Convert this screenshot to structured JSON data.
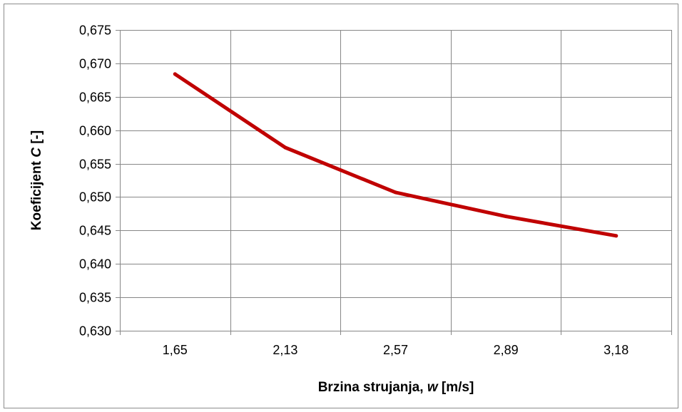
{
  "chart_data": {
    "type": "line",
    "title": "",
    "categories": [
      "1,65",
      "2,13",
      "2,57",
      "2,89",
      "3,18"
    ],
    "series": [
      {
        "values": [
          0.6684,
          0.6574,
          0.6507,
          0.6471,
          0.6442
        ]
      }
    ],
    "ylim": [
      0.63,
      0.675
    ],
    "ystep": 0.005,
    "ytick_labels": [
      "0,630",
      "0,635",
      "0,640",
      "0,645",
      "0,650",
      "0,655",
      "0,660",
      "0,665",
      "0,670",
      "0,675"
    ],
    "xlabel": {
      "pre": "Brzina strujanja, ",
      "var": "w",
      "post": " [m/s]"
    },
    "ylabel": {
      "pre": "Koeficijent ",
      "var": "C",
      "post": " [-]"
    },
    "grid": true,
    "legend": "none",
    "colors": {
      "line": "#c00000",
      "grid": "#878787",
      "frame": "#8c8c8c"
    }
  }
}
